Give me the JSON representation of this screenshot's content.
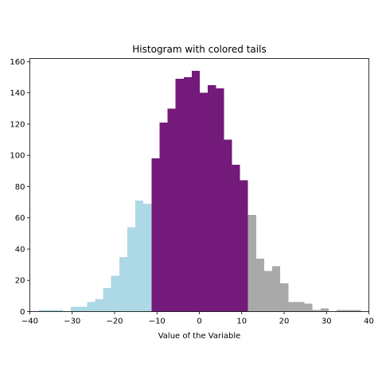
{
  "chart_data": {
    "type": "bar",
    "title": "Histogram with colored tails",
    "xlabel": "Value of the Variable",
    "ylabel": "",
    "xlim": [
      -40,
      40
    ],
    "ylim": [
      0,
      162
    ],
    "xticks": [
      -40,
      -30,
      -20,
      -10,
      0,
      10,
      20,
      30,
      40
    ],
    "yticks": [
      0,
      20,
      40,
      60,
      80,
      100,
      120,
      140,
      160
    ],
    "grid": false,
    "bin_width": 1.9,
    "colors": {
      "left_tail": "#add8e6",
      "center": "#731a7a",
      "right_tail": "#a9a9a9"
    },
    "bins": [
      {
        "x0": -37.9,
        "x1": -36.0,
        "count": 1,
        "region": "left_tail"
      },
      {
        "x0": -36.0,
        "x1": -34.1,
        "count": 1,
        "region": "left_tail"
      },
      {
        "x0": -34.1,
        "x1": -32.2,
        "count": 1,
        "region": "left_tail"
      },
      {
        "x0": -32.2,
        "x1": -30.3,
        "count": 0,
        "region": "left_tail"
      },
      {
        "x0": -30.3,
        "x1": -28.4,
        "count": 3,
        "region": "left_tail"
      },
      {
        "x0": -28.4,
        "x1": -26.5,
        "count": 3,
        "region": "left_tail"
      },
      {
        "x0": -26.5,
        "x1": -24.6,
        "count": 6,
        "region": "left_tail"
      },
      {
        "x0": -24.6,
        "x1": -22.7,
        "count": 8,
        "region": "left_tail"
      },
      {
        "x0": -22.7,
        "x1": -20.8,
        "count": 15,
        "region": "left_tail"
      },
      {
        "x0": -20.8,
        "x1": -18.9,
        "count": 23,
        "region": "left_tail"
      },
      {
        "x0": -18.9,
        "x1": -17.0,
        "count": 35,
        "region": "left_tail"
      },
      {
        "x0": -17.0,
        "x1": -15.1,
        "count": 54,
        "region": "left_tail"
      },
      {
        "x0": -15.1,
        "x1": -13.2,
        "count": 71,
        "region": "left_tail"
      },
      {
        "x0": -13.2,
        "x1": -11.3,
        "count": 69,
        "region": "left_tail"
      },
      {
        "x0": -11.3,
        "x1": -9.4,
        "count": 98,
        "region": "center"
      },
      {
        "x0": -9.4,
        "x1": -7.5,
        "count": 121,
        "region": "center"
      },
      {
        "x0": -7.5,
        "x1": -5.6,
        "count": 130,
        "region": "center"
      },
      {
        "x0": -5.6,
        "x1": -3.7,
        "count": 149,
        "region": "center"
      },
      {
        "x0": -3.7,
        "x1": -1.8,
        "count": 150,
        "region": "center"
      },
      {
        "x0": -1.8,
        "x1": 0.1,
        "count": 154,
        "region": "center"
      },
      {
        "x0": 0.1,
        "x1": 2.0,
        "count": 140,
        "region": "center"
      },
      {
        "x0": 2.0,
        "x1": 3.9,
        "count": 145,
        "region": "center"
      },
      {
        "x0": 3.9,
        "x1": 5.8,
        "count": 143,
        "region": "center"
      },
      {
        "x0": 5.8,
        "x1": 7.7,
        "count": 110,
        "region": "center"
      },
      {
        "x0": 7.7,
        "x1": 9.6,
        "count": 94,
        "region": "center"
      },
      {
        "x0": 9.6,
        "x1": 11.5,
        "count": 84,
        "region": "center"
      },
      {
        "x0": 11.5,
        "x1": 13.4,
        "count": 62,
        "region": "right_tail"
      },
      {
        "x0": 13.4,
        "x1": 15.3,
        "count": 34,
        "region": "right_tail"
      },
      {
        "x0": 15.3,
        "x1": 17.2,
        "count": 26,
        "region": "right_tail"
      },
      {
        "x0": 17.2,
        "x1": 19.1,
        "count": 29,
        "region": "right_tail"
      },
      {
        "x0": 19.1,
        "x1": 21.0,
        "count": 18,
        "region": "right_tail"
      },
      {
        "x0": 21.0,
        "x1": 22.9,
        "count": 6,
        "region": "right_tail"
      },
      {
        "x0": 22.9,
        "x1": 24.8,
        "count": 6,
        "region": "right_tail"
      },
      {
        "x0": 24.8,
        "x1": 26.7,
        "count": 5,
        "region": "right_tail"
      },
      {
        "x0": 26.7,
        "x1": 28.6,
        "count": 1,
        "region": "right_tail"
      },
      {
        "x0": 28.6,
        "x1": 30.5,
        "count": 2,
        "region": "right_tail"
      },
      {
        "x0": 30.5,
        "x1": 32.4,
        "count": 0,
        "region": "right_tail"
      },
      {
        "x0": 32.4,
        "x1": 34.3,
        "count": 1,
        "region": "right_tail"
      },
      {
        "x0": 34.3,
        "x1": 36.2,
        "count": 1,
        "region": "right_tail"
      },
      {
        "x0": 36.2,
        "x1": 38.1,
        "count": 1,
        "region": "right_tail"
      }
    ]
  }
}
